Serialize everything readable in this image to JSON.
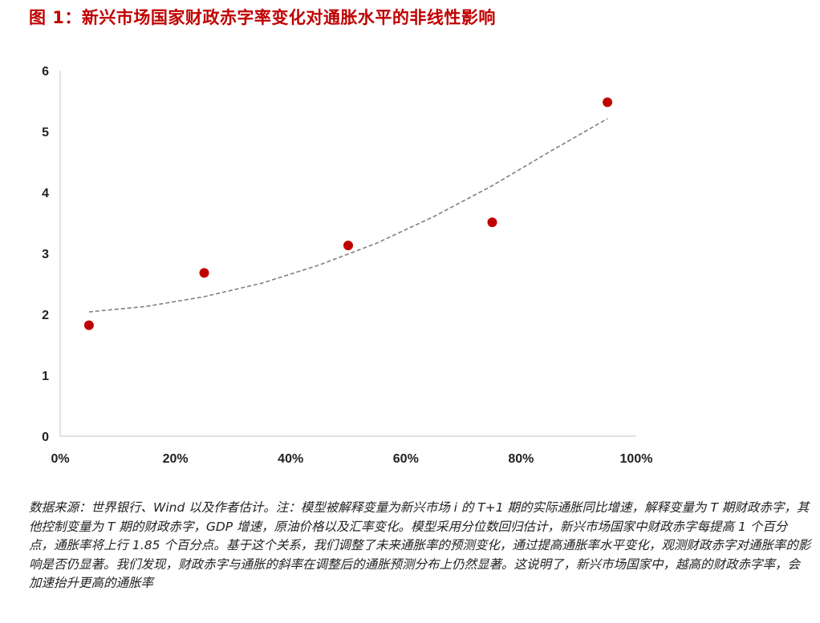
{
  "title": "图 1：新兴市场国家财政赤字率变化对通胀水平的非线性影响",
  "note": "数据来源：世界银行、Wind 以及作者估计。注：模型被解释变量为新兴市场 i 的 T+1 期的实际通胀同比增速，解释变量为 T 期财政赤字，其他控制变量为 T 期的财政赤字，GDP 增速，原油价格以及汇率变化。模型采用分位数回归估计，新兴市场国家中财政赤字每提高 1 个百分点，通胀率将上行 1.85 个百分点。基于这个关系，我们调整了未来通胀率的预测变化，通过提高通胀率水平变化，观测财政赤字对通胀率的影响是否仍显著。我们发现，财政赤字与通胀的斜率在调整后的通胀预测分布上仍然显著。这说明了，新兴市场国家中，越高的财政赤字率，会加速抬升更高的通胀率",
  "chart_data": {
    "type": "scatter",
    "title": "",
    "xlabel": "",
    "ylabel": "",
    "xlim": [
      0,
      1
    ],
    "ylim": [
      0,
      6
    ],
    "x_ticks": [
      "0%",
      "20%",
      "40%",
      "60%",
      "80%",
      "100%"
    ],
    "x_tick_values": [
      0,
      0.2,
      0.4,
      0.6,
      0.8,
      1.0
    ],
    "y_ticks": [
      "0",
      "1",
      "2",
      "3",
      "4",
      "5",
      "6"
    ],
    "y_tick_values": [
      0,
      1,
      2,
      3,
      4,
      5,
      6
    ],
    "grid": false,
    "series": [
      {
        "kind": "points",
        "color": "#c00000",
        "x": [
          0.05,
          0.25,
          0.5,
          0.75,
          0.95
        ],
        "y": [
          1.82,
          2.68,
          3.13,
          3.51,
          5.48
        ]
      },
      {
        "kind": "trendline",
        "style": "dashed",
        "color": "#808080",
        "x": [
          0.05,
          0.15,
          0.25,
          0.35,
          0.45,
          0.55,
          0.65,
          0.75,
          0.85,
          0.95
        ],
        "y": [
          2.04,
          2.13,
          2.29,
          2.51,
          2.81,
          3.17,
          3.61,
          4.11,
          4.67,
          5.21
        ]
      }
    ]
  }
}
